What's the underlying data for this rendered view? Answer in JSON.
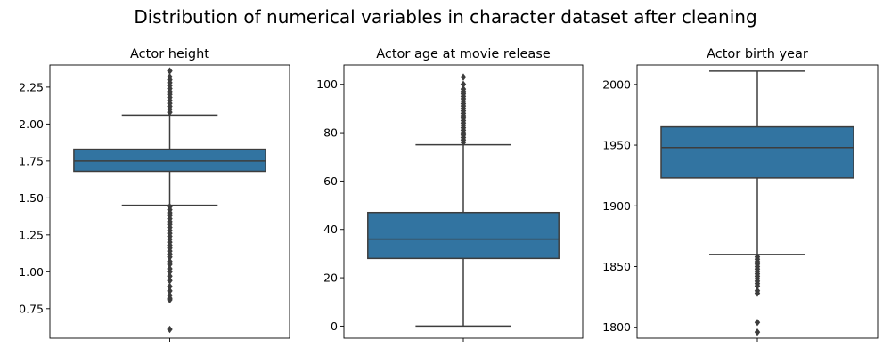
{
  "figure": {
    "suptitle": "Distribution of numerical variables in character dataset after cleaning"
  },
  "colors": {
    "box_fill": "#3274a1",
    "line": "#3d3d3d",
    "frame": "#000000"
  },
  "chart_data": [
    {
      "type": "box",
      "title": "Actor height",
      "xlabel": "",
      "ylabel": "",
      "ylim": [
        0.55,
        2.4
      ],
      "yticks": [
        0.75,
        1.0,
        1.25,
        1.5,
        1.75,
        2.0,
        2.25
      ],
      "ytick_labels": [
        "0.75",
        "1.00",
        "1.25",
        "1.50",
        "1.75",
        "2.00",
        "2.25"
      ],
      "box": {
        "whisker_low": 1.45,
        "q1": 1.68,
        "median": 1.75,
        "q3": 1.83,
        "whisker_high": 2.06
      },
      "outliers": [
        2.08,
        2.1,
        2.12,
        2.14,
        2.16,
        2.18,
        2.2,
        2.22,
        2.24,
        2.26,
        2.28,
        2.3,
        2.32,
        2.36,
        1.44,
        1.42,
        1.4,
        1.38,
        1.36,
        1.34,
        1.32,
        1.3,
        1.28,
        1.26,
        1.24,
        1.22,
        1.2,
        1.18,
        1.16,
        1.14,
        1.12,
        1.1,
        1.07,
        1.05,
        1.02,
        1.0,
        0.97,
        0.94,
        0.9,
        0.87,
        0.84,
        0.82,
        0.81,
        0.61
      ]
    },
    {
      "type": "box",
      "title": "Actor age at movie release",
      "xlabel": "",
      "ylabel": "",
      "ylim": [
        -5,
        108
      ],
      "yticks": [
        0,
        20,
        40,
        60,
        80,
        100
      ],
      "ytick_labels": [
        "0",
        "20",
        "40",
        "60",
        "80",
        "100"
      ],
      "box": {
        "whisker_low": 0,
        "q1": 28,
        "median": 36,
        "q3": 47,
        "whisker_high": 75
      },
      "outliers": [
        76,
        77,
        78,
        79,
        80,
        81,
        82,
        83,
        84,
        85,
        86,
        87,
        88,
        89,
        90,
        91,
        92,
        93,
        94,
        95,
        96,
        97,
        98,
        100,
        103
      ]
    },
    {
      "type": "box",
      "title": "Actor birth year",
      "xlabel": "",
      "ylabel": "",
      "ylim": [
        1791,
        2016
      ],
      "yticks": [
        1800,
        1850,
        1900,
        1950,
        2000
      ],
      "ytick_labels": [
        "1800",
        "1850",
        "1900",
        "1950",
        "2000"
      ],
      "box": {
        "whisker_low": 1860,
        "q1": 1923,
        "median": 1948,
        "q3": 1965,
        "whisker_high": 2011
      },
      "outliers": [
        1858,
        1856,
        1854,
        1852,
        1850,
        1848,
        1846,
        1844,
        1842,
        1840,
        1838,
        1836,
        1834,
        1830,
        1828,
        1804,
        1796
      ]
    }
  ]
}
